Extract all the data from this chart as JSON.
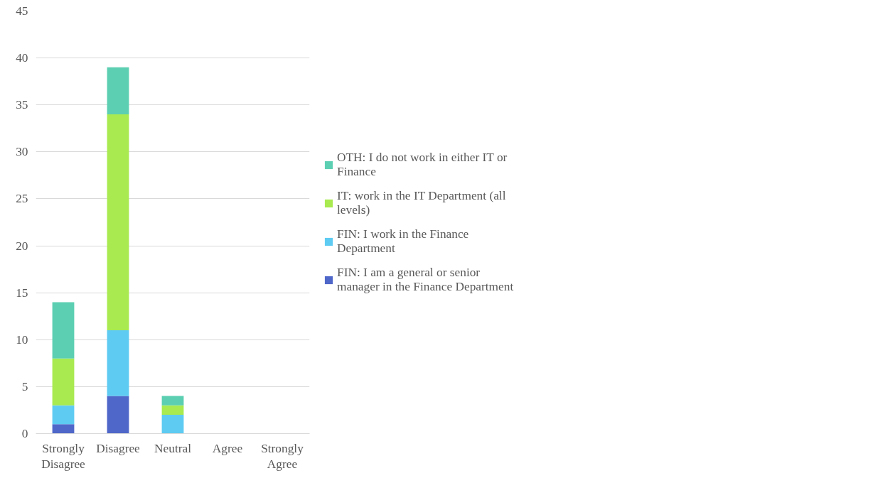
{
  "chart_data": {
    "type": "bar",
    "stacked": true,
    "categories": [
      "Strongly Disagree",
      "Disagree",
      "Neutral",
      "Agree",
      "Strongly Agree"
    ],
    "series": [
      {
        "name": "FIN: I am a general or senior manager in the Finance Department",
        "color": "#4f67c9",
        "values": [
          1,
          4,
          0,
          0,
          0
        ]
      },
      {
        "name": "FIN: I work in the Finance Department",
        "color": "#5ecbf2",
        "values": [
          2,
          7,
          2,
          0,
          0
        ]
      },
      {
        "name": "IT: work in the IT Department (all levels)",
        "color": "#a8ea50",
        "values": [
          5,
          23,
          1,
          0,
          0
        ]
      },
      {
        "name": "OTH: I do not work in either IT or Finance",
        "color": "#5ccfb2",
        "values": [
          6,
          5,
          1,
          0,
          0
        ]
      }
    ],
    "ylim": [
      0,
      45
    ],
    "yticks": [
      0,
      5,
      10,
      15,
      20,
      25,
      30,
      35,
      40,
      45
    ],
    "grid": "y",
    "legend": "right"
  }
}
